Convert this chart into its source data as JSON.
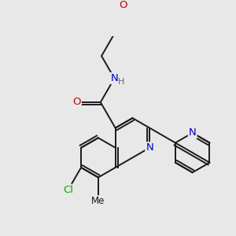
{
  "bg_color": "#e8e8e8",
  "bond_color": "#1a1a1a",
  "atom_colors": {
    "O": "#cc0000",
    "N": "#0000cc",
    "Cl": "#00aa00",
    "C": "#1a1a1a",
    "H": "#666666"
  },
  "font_size": 8.5,
  "bond_width": 1.4
}
